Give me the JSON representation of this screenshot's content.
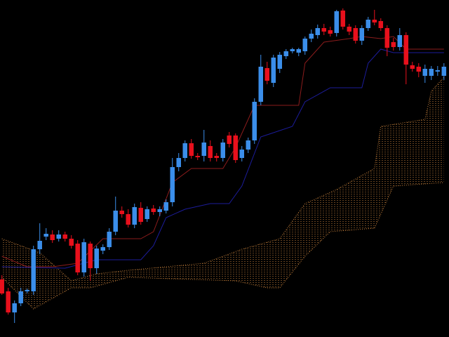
{
  "chart_data": {
    "type": "candlestick",
    "xlim": [
      -0.3,
      70.8
    ],
    "ylim": [
      0,
      480
    ],
    "up_color": "#3b8eea",
    "down_color": "#e8101c",
    "open": [
      82,
      65,
      35,
      48,
      65,
      65,
      125,
      143,
      146,
      140,
      146,
      140,
      133,
      92,
      133,
      98,
      123,
      128,
      150,
      180,
      175,
      160,
      184,
      168,
      183,
      178,
      180,
      192,
      242,
      255,
      276,
      258,
      258,
      272,
      258,
      255,
      287,
      287,
      255,
      267,
      280,
      335,
      383,
      362,
      382,
      400,
      407,
      405,
      407,
      425,
      430,
      440,
      437,
      433,
      465,
      442,
      440,
      422,
      440,
      452,
      450,
      440,
      420,
      413,
      430,
      387,
      385,
      372,
      372,
      378,
      372
    ],
    "high": [
      88,
      70,
      52,
      70,
      69,
      130,
      162,
      155,
      152,
      152,
      150,
      145,
      138,
      140,
      136,
      130,
      132,
      155,
      200,
      186,
      182,
      190,
      192,
      186,
      188,
      186,
      196,
      255,
      262,
      280,
      282,
      262,
      295,
      280,
      262,
      282,
      292,
      290,
      272,
      284,
      340,
      402,
      392,
      402,
      406,
      410,
      412,
      412,
      428,
      438,
      445,
      446,
      442,
      466,
      468,
      446,
      444,
      444,
      456,
      466,
      454,
      444,
      426,
      440,
      434,
      392,
      390,
      388,
      386,
      386,
      390
    ],
    "low": [
      60,
      32,
      20,
      44,
      62,
      60,
      118,
      138,
      134,
      136,
      136,
      126,
      88,
      86,
      80,
      90,
      118,
      124,
      145,
      170,
      156,
      155,
      160,
      164,
      174,
      172,
      176,
      186,
      236,
      250,
      254,
      252,
      250,
      250,
      250,
      250,
      270,
      248,
      250,
      262,
      275,
      330,
      360,
      356,
      376,
      396,
      404,
      400,
      402,
      420,
      425,
      430,
      428,
      428,
      438,
      430,
      418,
      416,
      436,
      444,
      436,
      400,
      408,
      408,
      360,
      378,
      370,
      362,
      366,
      372,
      366
    ],
    "close": [
      62,
      35,
      48,
      65,
      67,
      125,
      137,
      147,
      138,
      146,
      140,
      130,
      92,
      135,
      98,
      126,
      128,
      150,
      180,
      175,
      160,
      185,
      164,
      182,
      178,
      182,
      192,
      242,
      255,
      276,
      258,
      256,
      277,
      255,
      255,
      277,
      275,
      252,
      267,
      280,
      335,
      385,
      365,
      398,
      402,
      407,
      410,
      410,
      425,
      432,
      440,
      435,
      432,
      464,
      442,
      435,
      422,
      440,
      452,
      448,
      440,
      412,
      413,
      430,
      388,
      382,
      378,
      382,
      382,
      380,
      385
    ],
    "lines": [
      {
        "color": "#8b1c1c",
        "x": [
          0,
          4,
          8,
          12,
          16,
          22,
          24,
          27,
          30,
          35,
          37,
          40,
          47,
          48,
          51,
          55,
          57,
          60,
          62,
          64,
          70
        ],
        "values": [
          115,
          100,
          100,
          105,
          140,
          140,
          150,
          220,
          240,
          240,
          270,
          330,
          330,
          390,
          420,
          425,
          428,
          425,
          428,
          410,
          410
        ]
      },
      {
        "color": "#1c1c9a",
        "x": [
          0,
          10,
          15,
          22,
          24,
          26,
          29,
          33,
          36,
          38,
          41,
          46,
          48,
          52,
          57,
          58,
          60,
          62,
          70
        ],
        "values": [
          100,
          98,
          110,
          110,
          130,
          170,
          182,
          190,
          190,
          215,
          285,
          300,
          335,
          355,
          355,
          390,
          410,
          405,
          405
        ]
      }
    ],
    "cloud_color": "#c8823c",
    "cloud": [
      {
        "x": [
          0,
          6,
          11,
          15,
          20,
          32,
          38,
          44,
          48,
          53,
          59,
          60,
          67,
          68,
          70
        ],
        "values": [
          140,
          120,
          80,
          90,
          95,
          105,
          125,
          140,
          190,
          210,
          240,
          300,
          310,
          350,
          370
        ]
      },
      {
        "x": [
          0,
          5,
          11,
          14,
          20,
          37,
          42,
          44,
          48,
          52,
          59,
          62,
          70
        ],
        "values": [
          85,
          40,
          70,
          70,
          85,
          80,
          70,
          70,
          115,
          150,
          155,
          215,
          220
        ]
      }
    ]
  }
}
